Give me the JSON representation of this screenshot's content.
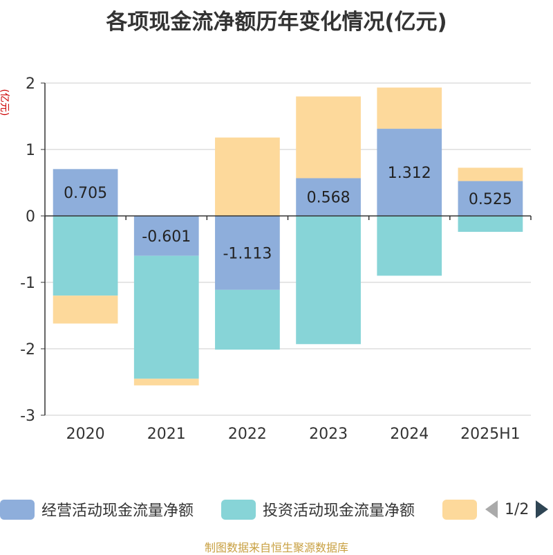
{
  "chart_data": {
    "type": "bar",
    "stacked": true,
    "title": "各项现金流净额历年变化情况(亿元)",
    "ylabel": "(亿元)",
    "categories": [
      "2020",
      "2021",
      "2022",
      "2023",
      "2024",
      "2025H1"
    ],
    "ylim": [
      -3,
      2
    ],
    "yticks": [
      2,
      1,
      0,
      -1,
      -2,
      -3
    ],
    "grid": true,
    "legend_position": "bottom",
    "series": [
      {
        "name": "经营活动现金流量净额",
        "color": "#8eaedb",
        "values": [
          0.705,
          -0.601,
          -1.113,
          0.568,
          1.312,
          0.525
        ],
        "labels": [
          "0.705",
          "-0.601",
          "-1.113",
          "0.568",
          "1.312",
          "0.525"
        ]
      },
      {
        "name": "投资活动现金流量净额",
        "color": "#87d4d7",
        "values": [
          -1.2,
          -1.85,
          -0.9,
          -1.93,
          -0.9,
          -0.24
        ]
      },
      {
        "name": "",
        "color": "#fdd99b",
        "values": [
          -0.42,
          -0.1,
          1.18,
          1.23,
          0.62,
          0.2
        ]
      }
    ]
  },
  "legend": {
    "pager": "1/2"
  },
  "source": "制图数据来自恒生聚源数据库"
}
